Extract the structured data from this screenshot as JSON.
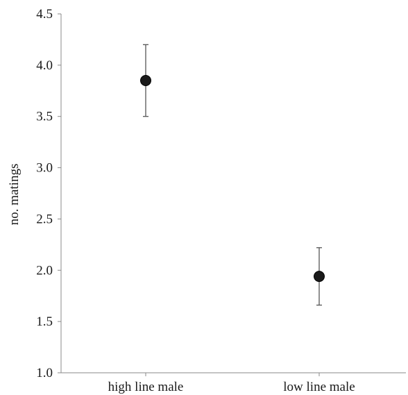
{
  "chart_data": {
    "type": "scatter",
    "title": "",
    "xlabel": "",
    "ylabel": "no. matings",
    "categories": [
      "high line male",
      "low line male"
    ],
    "series": [
      {
        "values": [
          3.85,
          1.94
        ],
        "error_upper": [
          4.2,
          2.22
        ],
        "error_lower": [
          3.5,
          1.66
        ],
        "marker_color": "#1a1a1a"
      }
    ],
    "ylim": [
      1.0,
      4.5
    ],
    "yticks": [
      "1.0",
      "1.5",
      "2.0",
      "2.5",
      "3.0",
      "3.5",
      "4.0",
      "4.5"
    ],
    "grid": false,
    "legend": "none"
  }
}
